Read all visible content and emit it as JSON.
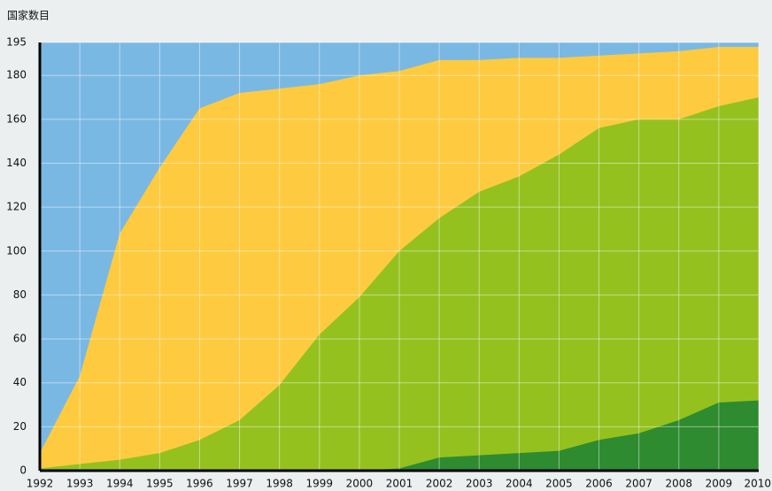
{
  "chart_data": {
    "type": "area",
    "title": "国家数目",
    "x": [
      1992,
      1993,
      1994,
      1995,
      1996,
      1997,
      1998,
      1999,
      2000,
      2001,
      2002,
      2003,
      2004,
      2005,
      2006,
      2007,
      2008,
      2009,
      2010
    ],
    "xlim": [
      1992,
      2010
    ],
    "ylim": [
      0,
      195
    ],
    "yticks": [
      0,
      20,
      40,
      60,
      80,
      100,
      120,
      140,
      160,
      180,
      195
    ],
    "grid": true,
    "background_color": "#7ab8e4",
    "series": [
      {
        "color": "#fecb40",
        "values": [
          8,
          43,
          108,
          138,
          165,
          172,
          174,
          176,
          180,
          182,
          187,
          187,
          188,
          188,
          189,
          190,
          191,
          193,
          193
        ]
      },
      {
        "color": "#95c11f",
        "values": [
          1,
          3,
          5,
          8,
          14,
          23,
          39,
          62,
          79,
          100,
          115,
          127,
          134,
          144,
          156,
          160,
          160,
          166,
          170
        ]
      },
      {
        "color": "#2e8b30",
        "values": [
          0,
          0,
          0,
          0,
          0,
          0,
          0,
          0,
          0,
          1,
          6,
          7,
          8,
          9,
          14,
          17,
          23,
          31,
          32
        ]
      }
    ]
  }
}
